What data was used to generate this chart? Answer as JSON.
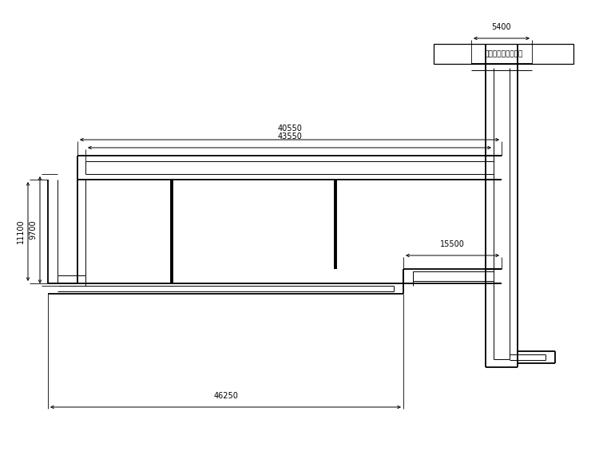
{
  "bg_color": "#ffffff",
  "line_color": "#000000",
  "annotation_text": "原地压实已完成部分",
  "dim_40550": "40550",
  "dim_43550": "43550",
  "dim_5400": "5400",
  "dim_15500": "15500",
  "dim_11100": "11100",
  "dim_9700": "9700",
  "dim_46250": "46250",
  "lw_outer": 1.3,
  "lw_inner": 0.7,
  "lw_bold": 2.8
}
